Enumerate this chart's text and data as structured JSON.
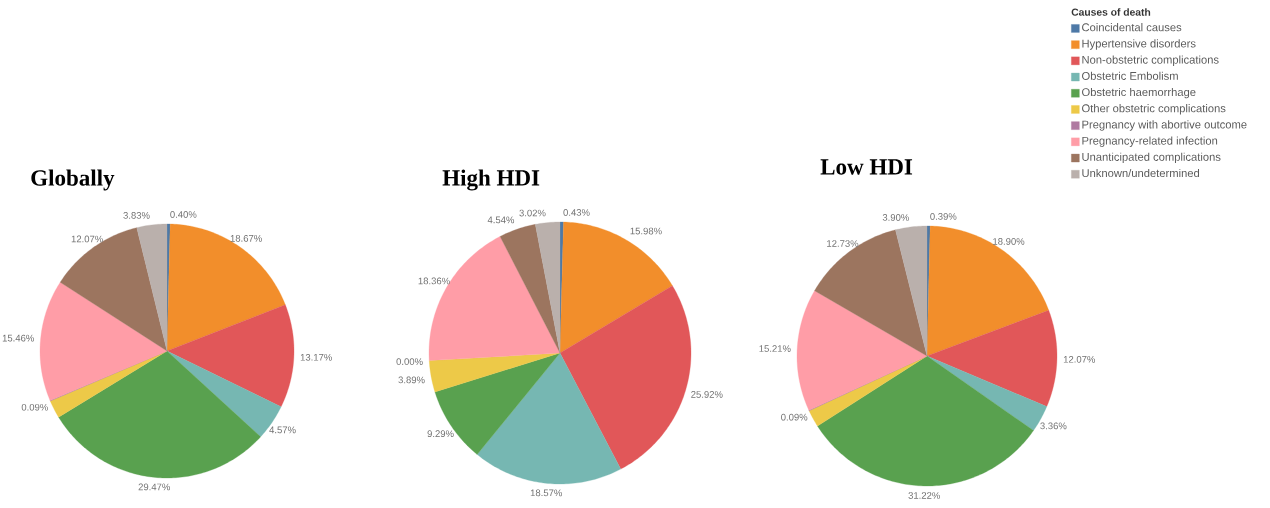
{
  "chart_data": [
    {
      "type": "pie",
      "title": "Globally",
      "categories": [
        null,
        null,
        null,
        null,
        null,
        null,
        null,
        null,
        null,
        null
      ],
      "values": [
        0.4,
        18.67,
        13.17,
        4.57,
        29.47,
        2.27,
        0.09,
        15.46,
        12.07,
        3.83
      ],
      "colors": [
        "#4e79a7",
        "#f28e2b",
        "#e15759",
        "#76b7b2",
        "#59a14f",
        "#edc948",
        "#b07aa1",
        "#ff9da7",
        "#9c755f",
        "#bab0ac"
      ],
      "value_labels": [
        "0.40%",
        "18.67%",
        "13.17%",
        "4.57%",
        "29.47%",
        null,
        "0.09%",
        "15.46%",
        "12.07%",
        "3.83%"
      ]
    },
    {
      "type": "pie",
      "title": "High HDI",
      "categories": [
        null,
        null,
        null,
        null,
        null,
        null,
        null,
        null,
        null,
        null
      ],
      "values": [
        0.43,
        15.98,
        25.92,
        18.57,
        9.29,
        3.89,
        0.0,
        18.36,
        4.54,
        3.02
      ],
      "colors": [
        "#4e79a7",
        "#f28e2b",
        "#e15759",
        "#76b7b2",
        "#59a14f",
        "#edc948",
        "#b07aa1",
        "#ff9da7",
        "#9c755f",
        "#bab0ac"
      ],
      "value_labels": [
        "0.43%",
        "15.98%",
        "25.92%",
        "18.57%",
        "9.29%",
        "3.89%",
        "0.00%",
        "18.36%",
        "4.54%",
        "3.02%"
      ]
    },
    {
      "type": "pie",
      "title": "Low HDI",
      "categories": [
        "Coincidental causes",
        "Hypertensive disorders",
        "Non-obstetric complications",
        "Obstetric Embolism",
        "Obstetric haemorrhage",
        "Other obstetric complications",
        "Pregnancy with abortive outcome",
        "Pregnancy-related infection",
        "Unanticipated complications",
        "Unknown/undetermined"
      ],
      "values": [
        0.39,
        18.9,
        12.07,
        3.36,
        31.22,
        2.13,
        0.09,
        15.21,
        12.73,
        3.9
      ],
      "colors": [
        "#4e79a7",
        "#f28e2b",
        "#e15759",
        "#76b7b2",
        "#59a14f",
        "#edc948",
        "#b07aa1",
        "#ff9da7",
        "#9c755f",
        "#bab0ac"
      ],
      "value_labels": [
        "0.39%",
        "18.90%",
        "12.07%",
        "3.36%",
        "31.22%",
        null,
        "0.09%",
        "15.21%",
        "12.73%",
        "3.90%"
      ],
      "legend": "top right",
      "legend_title": "Causes of death"
    }
  ]
}
